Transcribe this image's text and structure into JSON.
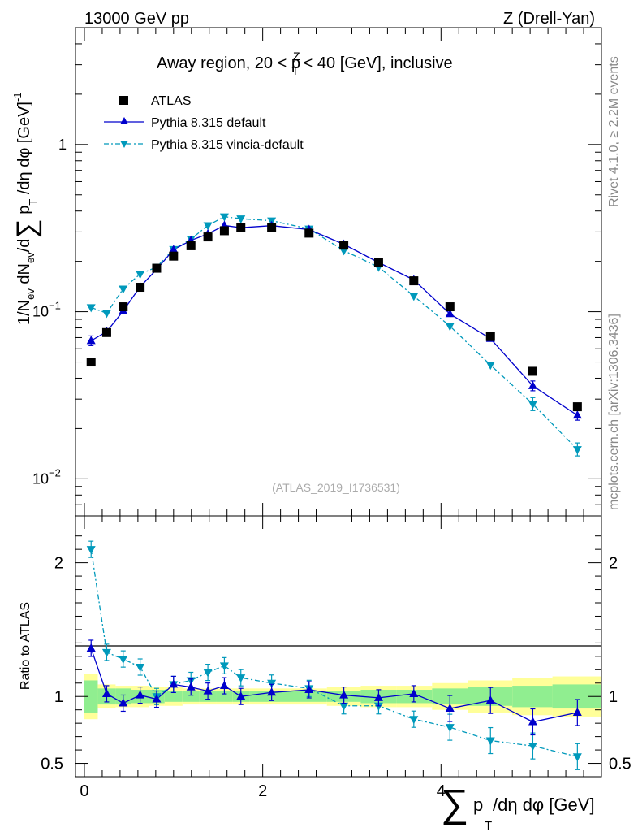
{
  "header": {
    "left": "13000 GeV pp",
    "right": "Z (Drell-Yan)"
  },
  "side": {
    "rivet": "Rivet 4.1.0, ≥ 2.2M events",
    "site": "mcplots.cern.ch [arXiv:1306.3436]"
  },
  "colors": {
    "atlas": "#000000",
    "pythia_default": "#0000cc",
    "pythia_vincia": "#0099bb",
    "band_inner": "#90ee90",
    "band_outer": "#ffff99"
  },
  "chart_data": [
    {
      "type": "scatter",
      "title_parts": {
        "pre": "Away region, 20 < p",
        "sup": "Z",
        "sub": "T",
        "post": " < 40 [GeV], inclusive"
      },
      "watermark": "(ATLAS_2019_I1736531)",
      "yscale": "log",
      "ylim": [
        0.006,
        5
      ],
      "xlim": [
        -0.1,
        5.8
      ],
      "ylabel": "1/N_ev dN_ev/d Σ p_T /dη dφ [GeV]^-1",
      "yticks": [
        {
          "label": "1",
          "value": 1
        },
        {
          "label": "10",
          "exp": "−1",
          "value": 0.1
        },
        {
          "label": "10",
          "exp": "−2",
          "value": 0.01
        }
      ],
      "legend": [
        {
          "key": "atlas",
          "label": "ATLAS"
        },
        {
          "key": "default",
          "label": "Pythia 8.315 default"
        },
        {
          "key": "vincia",
          "label": "Pythia 8.315 vincia-default"
        }
      ],
      "legend_position": "top-left",
      "x": [
        0.075,
        0.25,
        0.435,
        0.625,
        0.81,
        1.0,
        1.195,
        1.385,
        1.57,
        1.755,
        2.1,
        2.52,
        2.91,
        3.3,
        3.695,
        4.1,
        4.555,
        5.03,
        5.53
      ],
      "series": [
        {
          "name": "ATLAS",
          "values": [
            0.05,
            0.075,
            0.107,
            0.14,
            0.182,
            0.215,
            0.248,
            0.28,
            0.305,
            0.318,
            0.32,
            0.295,
            0.25,
            0.197,
            0.153,
            0.107,
            0.071,
            0.044,
            0.027
          ]
        },
        {
          "name": "Pythia 8.315 default",
          "values": [
            0.067,
            0.076,
            0.101,
            0.141,
            0.179,
            0.235,
            0.267,
            0.292,
            0.328,
            0.318,
            0.327,
            0.31,
            0.253,
            0.197,
            0.155,
            0.097,
            0.069,
            0.036,
            0.024
          ]
        },
        {
          "name": "Pythia 8.315 vincia-default",
          "values": [
            0.106,
            0.098,
            0.137,
            0.168,
            0.185,
            0.236,
            0.272,
            0.328,
            0.37,
            0.36,
            0.35,
            0.313,
            0.232,
            0.185,
            0.124,
            0.082,
            0.048,
            0.028,
            0.015
          ]
        }
      ]
    },
    {
      "type": "line",
      "ylabel": "Ratio to ATLAS",
      "xlabel": "Σ p_T /dη dφ [GeV]",
      "ylim": [
        0.4,
        2.35
      ],
      "xlim": [
        -0.1,
        5.8
      ],
      "yticks": [
        0.5,
        1,
        2
      ],
      "xticks": [
        0,
        2,
        4
      ],
      "x": [
        0.075,
        0.25,
        0.435,
        0.625,
        0.81,
        1.0,
        1.195,
        1.385,
        1.57,
        1.755,
        2.1,
        2.52,
        2.91,
        3.3,
        3.695,
        4.1,
        4.555,
        5.03,
        5.53
      ],
      "bin_edges": [
        0.0,
        0.15,
        0.35,
        0.52,
        0.72,
        0.9,
        1.1,
        1.29,
        1.48,
        1.66,
        1.85,
        2.32,
        2.72,
        3.1,
        3.5,
        3.9,
        4.3,
        4.8,
        5.25,
        5.8
      ],
      "band_inner": [
        0.12,
        0.06,
        0.06,
        0.05,
        0.05,
        0.04,
        0.04,
        0.04,
        0.04,
        0.04,
        0.04,
        0.04,
        0.04,
        0.05,
        0.05,
        0.06,
        0.07,
        0.08,
        0.09
      ],
      "band_outer": [
        0.17,
        0.09,
        0.08,
        0.08,
        0.07,
        0.07,
        0.06,
        0.06,
        0.06,
        0.06,
        0.06,
        0.06,
        0.07,
        0.08,
        0.08,
        0.1,
        0.12,
        0.14,
        0.15
      ],
      "series": [
        {
          "name": "Pythia 8.315 default",
          "values": [
            1.36,
            1.02,
            0.95,
            1.01,
            0.98,
            1.09,
            1.07,
            1.04,
            1.08,
            1.0,
            1.03,
            1.05,
            1.01,
            0.99,
            1.02,
            0.91,
            0.97,
            0.81,
            0.88
          ]
        },
        {
          "name": "Pythia 8.315 vincia-default",
          "values": [
            2.1,
            1.33,
            1.28,
            1.22,
            1.0,
            1.09,
            1.12,
            1.18,
            1.23,
            1.14,
            1.1,
            1.06,
            0.93,
            0.93,
            0.83,
            0.77,
            0.67,
            0.63,
            0.55
          ]
        }
      ]
    }
  ]
}
